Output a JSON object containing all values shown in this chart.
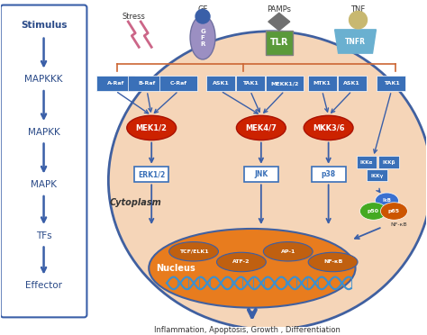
{
  "fig_width": 4.74,
  "fig_height": 3.72,
  "dpi": 100,
  "bg_color": "#ffffff",
  "cell_color": "#f5d5b8",
  "cell_edge_color": "#4060a0",
  "nucleus_color": "#e87c1e",
  "left_box_edge": "#3a5fa8",
  "arrow_color": "#3a5fa8",
  "blue_rect_color": "#3a70b8",
  "red_ellipse_color": "#cc2200",
  "gfr_color": "#9b8fc2",
  "tlr_color": "#5a9a3a",
  "tnfr_color": "#6ab0d0",
  "tnf_color": "#c8b870",
  "bottom_text": "Inflammation, Apoptosis, Growth , Differentiation",
  "left_labels": [
    "Stimulus",
    "MAPKKK",
    "MAPKK",
    "MAPK",
    "TFs",
    "Effector"
  ],
  "stress_text": "Stress",
  "gf_text": "GF",
  "pamps_text": "PAMPs",
  "tnf_text": "TNF",
  "cytoplasm_text": "Cytoplasm",
  "nucleus_text": "Nucleus",
  "nfkb_label": "NF-κB"
}
